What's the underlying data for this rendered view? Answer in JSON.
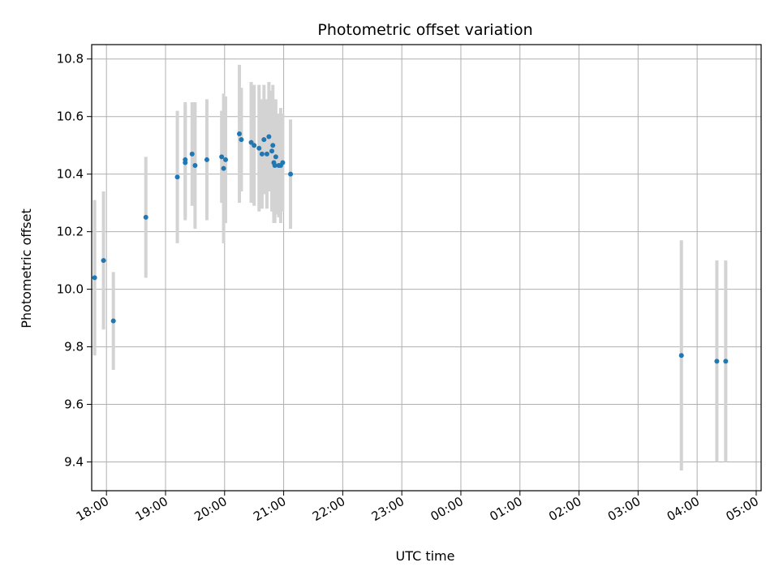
{
  "chart_data": {
    "type": "scatter",
    "title": "Photometric offset variation",
    "xlabel": "UTC time",
    "ylabel": "Photometric offset",
    "x_axis": "time",
    "xlim": [
      "17:45",
      "05:05"
    ],
    "ylim": [
      9.3,
      10.85
    ],
    "x_ticks": [
      "18:00",
      "19:00",
      "20:00",
      "21:00",
      "22:00",
      "23:00",
      "00:00",
      "01:00",
      "02:00",
      "03:00",
      "04:00",
      "05:00"
    ],
    "y_ticks": [
      9.4,
      9.6,
      9.8,
      10.0,
      10.2,
      10.4,
      10.6,
      10.8
    ],
    "y_tick_labels": [
      "9.4",
      "9.6",
      "9.8",
      "10.0",
      "10.2",
      "10.4",
      "10.6",
      "10.8"
    ],
    "grid": true,
    "marker_color": "#1f77b4",
    "errorbar_color": "#d3d3d3",
    "points": [
      {
        "t": "17:48",
        "y": 10.04,
        "err": 0.27
      },
      {
        "t": "17:57",
        "y": 10.1,
        "err": 0.24
      },
      {
        "t": "18:07",
        "y": 9.89,
        "err": 0.17
      },
      {
        "t": "18:40",
        "y": 10.25,
        "err": 0.21
      },
      {
        "t": "19:12",
        "y": 10.39,
        "err": 0.23
      },
      {
        "t": "19:20",
        "y": 10.45,
        "err": 0.2
      },
      {
        "t": "19:20",
        "y": 10.44,
        "err": 0.2
      },
      {
        "t": "19:27",
        "y": 10.47,
        "err": 0.18
      },
      {
        "t": "19:30",
        "y": 10.43,
        "err": 0.22
      },
      {
        "t": "19:42",
        "y": 10.45,
        "err": 0.21
      },
      {
        "t": "19:57",
        "y": 10.46,
        "err": 0.16
      },
      {
        "t": "19:59",
        "y": 10.42,
        "err": 0.26
      },
      {
        "t": "20:01",
        "y": 10.45,
        "err": 0.22
      },
      {
        "t": "20:15",
        "y": 10.54,
        "err": 0.24
      },
      {
        "t": "20:17",
        "y": 10.52,
        "err": 0.18
      },
      {
        "t": "20:27",
        "y": 10.51,
        "err": 0.21
      },
      {
        "t": "20:30",
        "y": 10.5,
        "err": 0.21
      },
      {
        "t": "20:35",
        "y": 10.49,
        "err": 0.22
      },
      {
        "t": "20:38",
        "y": 10.47,
        "err": 0.19
      },
      {
        "t": "20:40",
        "y": 10.52,
        "err": 0.19
      },
      {
        "t": "20:43",
        "y": 10.47,
        "err": 0.19
      },
      {
        "t": "20:45",
        "y": 10.53,
        "err": 0.19
      },
      {
        "t": "20:48",
        "y": 10.48,
        "err": 0.21
      },
      {
        "t": "20:49",
        "y": 10.5,
        "err": 0.21
      },
      {
        "t": "20:50",
        "y": 10.44,
        "err": 0.21
      },
      {
        "t": "20:51",
        "y": 10.43,
        "err": 0.2
      },
      {
        "t": "20:52",
        "y": 10.46,
        "err": 0.2
      },
      {
        "t": "20:55",
        "y": 10.43,
        "err": 0.18
      },
      {
        "t": "20:57",
        "y": 10.43,
        "err": 0.2
      },
      {
        "t": "20:59",
        "y": 10.44,
        "err": 0.17
      },
      {
        "t": "21:07",
        "y": 10.4,
        "err": 0.19
      },
      {
        "t": "03:44",
        "y": 9.77,
        "err": 0.4
      },
      {
        "t": "04:20",
        "y": 9.75,
        "err": 0.35
      },
      {
        "t": "04:29",
        "y": 9.75,
        "err": 0.35
      }
    ]
  }
}
